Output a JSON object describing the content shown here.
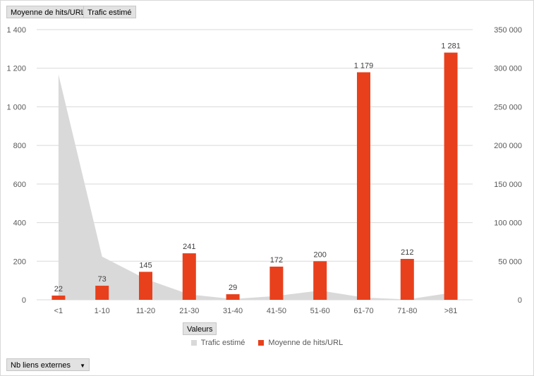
{
  "field_buttons": {
    "series1": "Moyenne de hits/URL",
    "series2": "Trafic estimé",
    "values": "Valeurs",
    "axis_field": "Nb liens externes"
  },
  "colors": {
    "bar": "#e8401c",
    "area": "#d9d9d9",
    "grid": "#d9d9d9",
    "text": "#595959"
  },
  "chart_data": {
    "type": "bar",
    "categories": [
      "<1",
      "1-10",
      "11-20",
      "21-30",
      "31-40",
      "41-50",
      "51-60",
      "61-70",
      "71-80",
      ">81"
    ],
    "series": [
      {
        "name": "Moyenne de hits/URL",
        "type": "bar",
        "axis": "left",
        "values": [
          22,
          73,
          145,
          241,
          29,
          172,
          200,
          1179,
          212,
          1281
        ],
        "labels": [
          "22",
          "73",
          "145",
          "241",
          "29",
          "172",
          "200",
          "1 179",
          "212",
          "1 281"
        ]
      },
      {
        "name": "Trafic estimé",
        "type": "area",
        "axis": "right",
        "values": [
          292000,
          56000,
          27000,
          7000,
          1000,
          5000,
          12000,
          3000,
          500,
          9000
        ]
      }
    ],
    "y_left": {
      "ylim": [
        0,
        1400
      ],
      "ticks": [
        "0",
        "200",
        "400",
        "600",
        "800",
        "1 000",
        "1 200",
        "1 400"
      ]
    },
    "y_right": {
      "ylim": [
        0,
        350000
      ],
      "ticks": [
        "0",
        "50 000",
        "100 000",
        "150 000",
        "200 000",
        "250 000",
        "300 000",
        "350 000"
      ]
    },
    "legend": [
      {
        "label": "Trafic estimé",
        "color": "#d9d9d9"
      },
      {
        "label": "Moyenne de hits/URL",
        "color": "#e8401c"
      }
    ],
    "legend_position": "bottom",
    "grid": true
  }
}
